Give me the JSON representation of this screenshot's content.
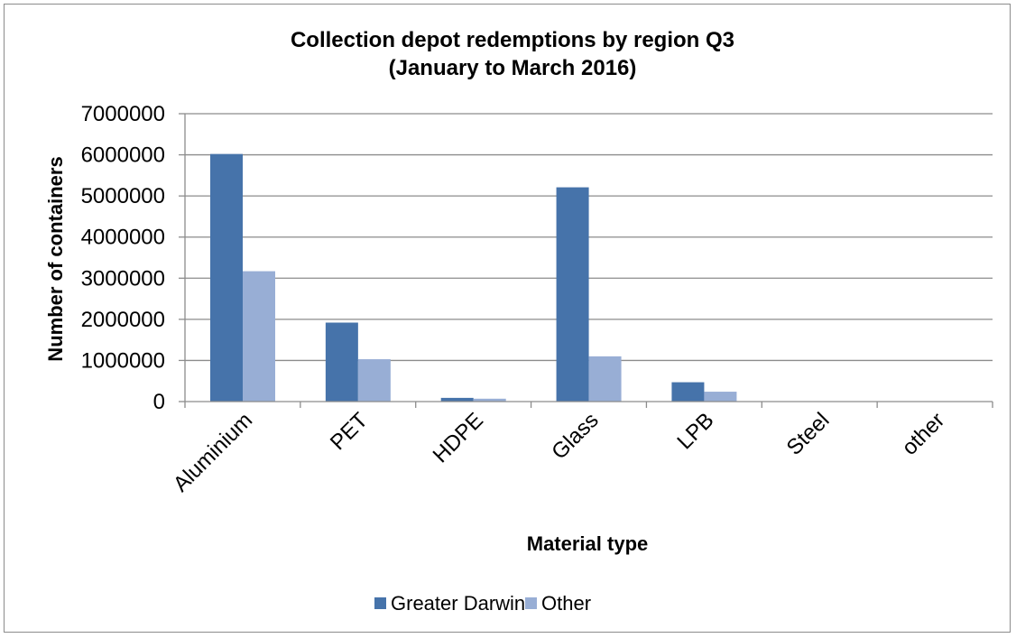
{
  "chart_data": {
    "type": "bar",
    "title": [
      "Collection depot redemptions by region Q3",
      "(January to March 2016)"
    ],
    "xlabel": "Material type",
    "ylabel": "Number of containers",
    "categories": [
      "Aluminium",
      "PET",
      "HDPE",
      "Glass",
      "LPB",
      "Steel",
      "other"
    ],
    "series": [
      {
        "name": "Greater Darwin",
        "color": "#4673AA",
        "values": [
          6020000,
          1920000,
          90000,
          5210000,
          470000,
          5000,
          0
        ]
      },
      {
        "name": "Other",
        "color": "#98AED5",
        "values": [
          3170000,
          1030000,
          70000,
          1100000,
          240000,
          3000,
          0
        ]
      }
    ],
    "ylim": [
      0,
      7000000
    ],
    "yticks": [
      0,
      1000000,
      2000000,
      3000000,
      4000000,
      5000000,
      6000000,
      7000000
    ],
    "grid": true,
    "legend": "bottom"
  }
}
